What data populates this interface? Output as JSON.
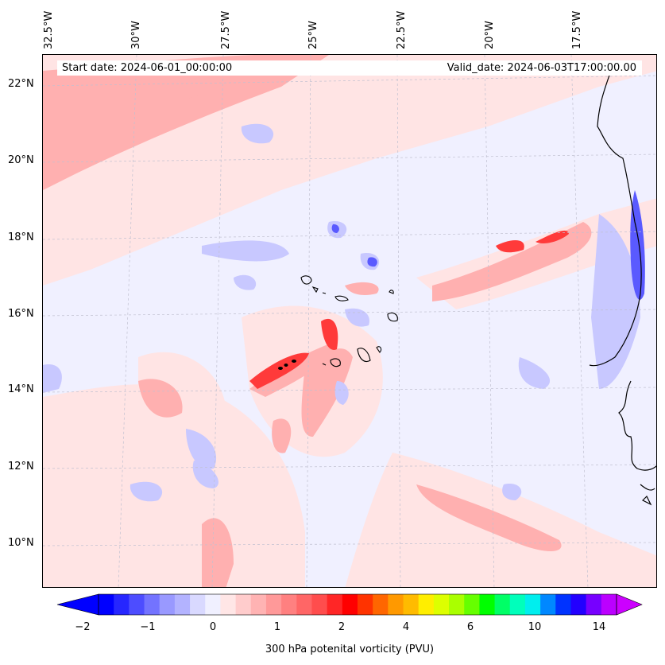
{
  "map": {
    "longitude_labels": [
      "32.5°W",
      "30°W",
      "27.5°W",
      "25°W",
      "22.5°W",
      "20°W",
      "17.5°W"
    ],
    "latitude_labels": [
      "22°N",
      "20°N",
      "18°N",
      "16°N",
      "14°N",
      "12°N",
      "10°N"
    ],
    "start_date": "Start date: 2024-06-01_00:00:00",
    "valid_date": "Valid_date: 2024-06-03T17:00:00.00",
    "colors": {
      "background_field": "#f0f0ff",
      "weak_positive": "#ffe0e0",
      "moderate_positive": "#ff9a9a",
      "strong_positive": "#ff2020",
      "negative": "#c8c8ff",
      "strong_negative": "#4040ff",
      "coastline": "#000000"
    }
  },
  "colorbar": {
    "label": "300 hPa potenital vorticity (PVU)",
    "tick_labels": [
      "−2",
      "−1",
      "0",
      "1",
      "2",
      "4",
      "6",
      "10",
      "14"
    ],
    "colors": [
      "#0000ff",
      "#2626ff",
      "#4d4dff",
      "#7373ff",
      "#9999ff",
      "#b3b3ff",
      "#d9d9ff",
      "#f0f0ff",
      "#ffe6e6",
      "#ffcccc",
      "#ffb3b3",
      "#ff9999",
      "#ff8080",
      "#ff6666",
      "#ff4d4d",
      "#ff2626",
      "#ff0000",
      "#ff3300",
      "#ff6600",
      "#ff9900",
      "#ffbb00",
      "#ffee00",
      "#ddff00",
      "#aaff00",
      "#66ff00",
      "#00ff00",
      "#00ff66",
      "#00ffbb",
      "#00eeee",
      "#0088ff",
      "#0033ff",
      "#2200ff",
      "#7700ff",
      "#bb00ff"
    ]
  }
}
